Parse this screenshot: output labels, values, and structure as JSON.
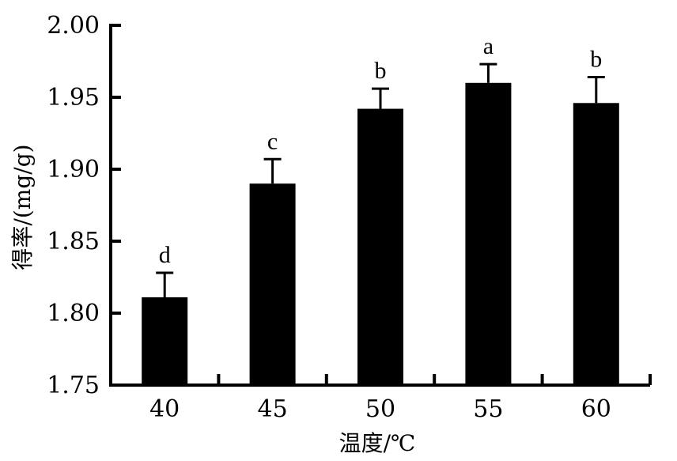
{
  "chart_data": {
    "type": "bar",
    "categories": [
      "40",
      "45",
      "50",
      "55",
      "60"
    ],
    "values": [
      1.811,
      1.89,
      1.942,
      1.96,
      1.946
    ],
    "errors": [
      0.017,
      0.017,
      0.014,
      0.013,
      0.018
    ],
    "significance": [
      "d",
      "c",
      "b",
      "a",
      "b"
    ],
    "xlabel": "温度/℃",
    "ylabel": "得率/(mg/g)",
    "ylim": [
      1.75,
      2.0
    ],
    "yticks": [
      "1.75",
      "1.80",
      "1.85",
      "1.90",
      "1.95",
      "2.00"
    ],
    "bar_color": "#000000",
    "grid": false
  }
}
